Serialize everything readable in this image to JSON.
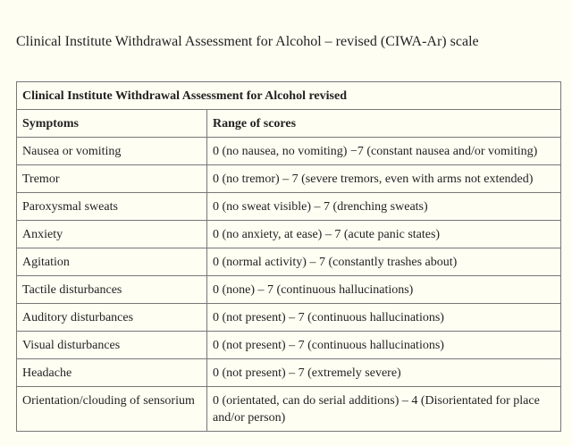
{
  "page_title": "Clinical Institute Withdrawal Assessment for Alcohol – revised (CIWA-Ar) scale",
  "table": {
    "caption": "Clinical Institute Withdrawal Assessment for Alcohol revised",
    "headers": {
      "symptoms": "Symptoms",
      "range": "Range of scores"
    },
    "rows": [
      {
        "symptom": "Nausea or vomiting",
        "range": "0 (no nausea, no vomiting) −7 (constant nausea and/or vomiting)"
      },
      {
        "symptom": "Tremor",
        "range": "0 (no tremor) – 7 (severe tremors, even with arms not extended)"
      },
      {
        "symptom": "Paroxysmal sweats",
        "range": "0 (no sweat visible) – 7 (drenching sweats)"
      },
      {
        "symptom": "Anxiety",
        "range": "0 (no anxiety, at ease) – 7 (acute panic states)"
      },
      {
        "symptom": "Agitation",
        "range": "0 (normal activity) – 7 (constantly trashes about)"
      },
      {
        "symptom": "Tactile disturbances",
        "range": "0 (none) – 7 (continuous hallucinations)"
      },
      {
        "symptom": "Auditory disturbances",
        "range": "0 (not present) – 7 (continuous hallucinations)"
      },
      {
        "symptom": "Visual disturbances",
        "range": "0 (not present) – 7 (continuous hallucinations)"
      },
      {
        "symptom": "Headache",
        "range": "0 (not present) – 7 (extremely severe)"
      },
      {
        "symptom": "Orientation/clouding of sensorium",
        "range": "0 (orientated, can do serial additions) – 4 (Disorientated for place and/or person)"
      }
    ]
  }
}
